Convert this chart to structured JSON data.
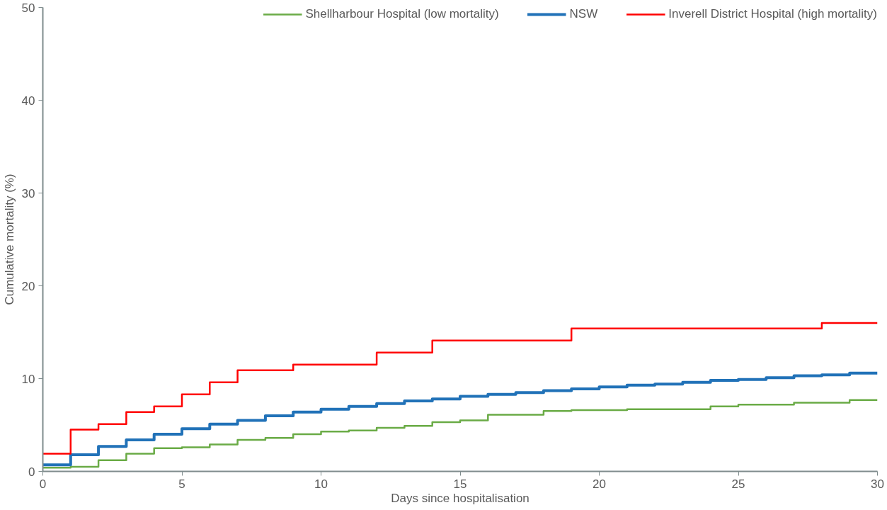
{
  "chart_data": {
    "type": "step",
    "xlabel": "Days since hospitalisation",
    "ylabel": "Cumulative mortality (%)",
    "x": [
      0,
      1,
      2,
      3,
      4,
      5,
      6,
      7,
      8,
      9,
      10,
      11,
      12,
      13,
      14,
      15,
      16,
      17,
      18,
      19,
      20,
      21,
      22,
      23,
      24,
      25,
      26,
      27,
      28,
      29,
      30
    ],
    "series": [
      {
        "name": "Shellharbour Hospital (low mortality)",
        "color": "#6aab46",
        "values": [
          0.4,
          0.5,
          1.2,
          1.9,
          2.5,
          2.6,
          2.9,
          3.4,
          3.6,
          4.0,
          4.3,
          4.4,
          4.7,
          4.9,
          5.3,
          5.5,
          6.1,
          6.1,
          6.5,
          6.6,
          6.6,
          6.7,
          6.7,
          6.7,
          7.0,
          7.2,
          7.2,
          7.4,
          7.4,
          7.7,
          7.7
        ]
      },
      {
        "name": "NSW",
        "color": "#2172b8",
        "values": [
          0.7,
          1.8,
          2.7,
          3.4,
          4.0,
          4.6,
          5.1,
          5.5,
          6.0,
          6.4,
          6.7,
          7.0,
          7.3,
          7.6,
          7.8,
          8.1,
          8.3,
          8.5,
          8.7,
          8.9,
          9.1,
          9.3,
          9.4,
          9.6,
          9.8,
          9.9,
          10.1,
          10.3,
          10.4,
          10.6,
          10.6
        ]
      },
      {
        "name": "Inverell District Hospital (high mortality)",
        "color": "#ff0000",
        "values": [
          1.9,
          4.5,
          5.1,
          6.4,
          7.0,
          8.3,
          9.6,
          10.9,
          10.9,
          11.5,
          11.5,
          11.5,
          12.8,
          12.8,
          14.1,
          14.1,
          14.1,
          14.1,
          14.1,
          15.4,
          15.4,
          15.4,
          15.4,
          15.4,
          15.4,
          15.4,
          15.4,
          15.4,
          16.0,
          16.0,
          16.0
        ]
      }
    ],
    "xlim": [
      0,
      30
    ],
    "xticks": [
      0,
      5,
      10,
      15,
      20,
      25,
      30
    ],
    "ylim": [
      0,
      50
    ],
    "yticks": [
      0,
      10,
      20,
      30,
      40,
      50
    ],
    "grid": false,
    "legend": "top"
  }
}
